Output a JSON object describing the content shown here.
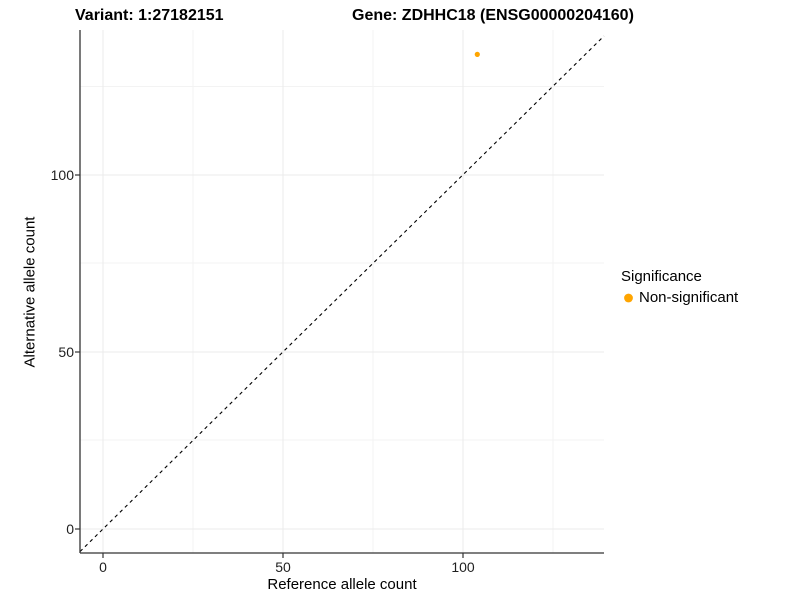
{
  "header": {
    "variant_title": "Variant: 1:27182151",
    "gene_title": "Gene: ZDHHC18 (ENSG00000204160)"
  },
  "chart_data": {
    "type": "scatter",
    "title_left": "Variant: 1:27182151",
    "title_right": "Gene: ZDHHC18 (ENSG00000204160)",
    "xlabel": "Reference allele count",
    "ylabel": "Alternative allele count",
    "xlim": [
      -6.4,
      139.2
    ],
    "ylim": [
      -6.8,
      140.9
    ],
    "x_ticks": [
      0,
      50,
      100
    ],
    "y_ticks": [
      0,
      50,
      100
    ],
    "grid": {
      "major": [
        0,
        50,
        100
      ],
      "minor": [
        25,
        75,
        125
      ],
      "major_color": "#ebebeb",
      "minor_color": "#f3f3f3",
      "background": "#ffffff"
    },
    "series": [
      {
        "name": "Non-significant",
        "color": "#FFA500",
        "points": [
          {
            "x": 104,
            "y": 134
          }
        ]
      }
    ],
    "reference_line": {
      "type": "identity y=x",
      "style": "dashed",
      "color": "#000000"
    },
    "legend": {
      "title": "Significance",
      "position": "right",
      "items": [
        {
          "label": "Non-significant",
          "color": "#FFA500"
        }
      ]
    }
  }
}
